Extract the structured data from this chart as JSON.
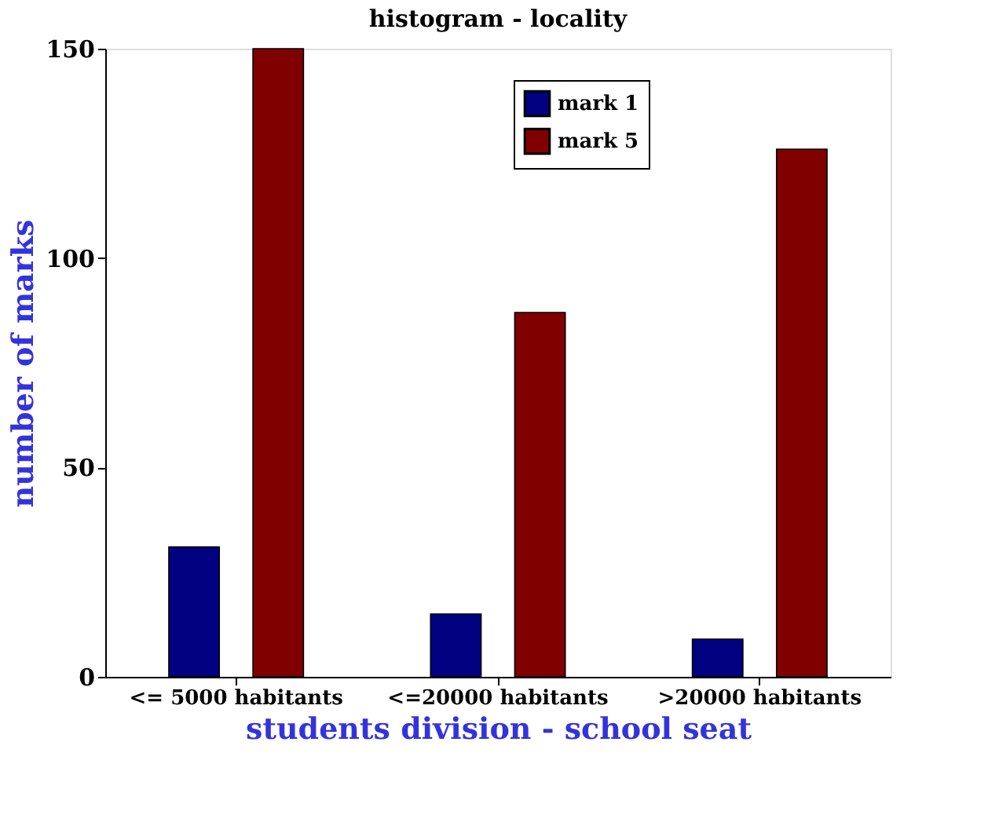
{
  "chart_data": {
    "type": "bar",
    "title": "histogram - locality",
    "xlabel": "students division - school seat",
    "ylabel": "number of marks",
    "categories": [
      "<= 5000 habitants",
      "<=20000 habitants",
      ">20000 habitants"
    ],
    "series": [
      {
        "name": "mark 1",
        "color": "#000080",
        "values": [
          31,
          15,
          9
        ]
      },
      {
        "name": "mark 5",
        "color": "#800000",
        "values": [
          150,
          87,
          126
        ]
      }
    ],
    "ylim": [
      0,
      150
    ],
    "yticks": [
      0,
      50,
      100,
      150
    ],
    "grid": false,
    "legend": "top right"
  }
}
